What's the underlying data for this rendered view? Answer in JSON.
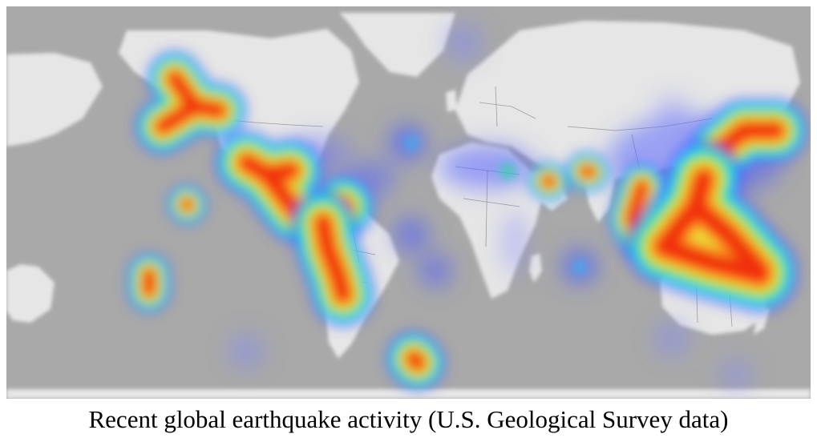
{
  "caption": "Recent global earthquake activity (U.S. Geological Survey data)",
  "map": {
    "projection": "mercator",
    "basemap": "light-gray-world",
    "ocean_color": "#a9a9a9",
    "land_color": "#e6e6e6",
    "border_color": "#8c8c8c"
  },
  "heatmap": {
    "color_ramp": [
      "#4b4bff",
      "#22cfff",
      "#33e84a",
      "#f4e23a",
      "#ff8c1a",
      "#f0280a"
    ],
    "hotspots": [
      {
        "name": "alaska-aleutians",
        "intensity": "very-high"
      },
      {
        "name": "mexico-central-america",
        "intensity": "very-high"
      },
      {
        "name": "andes-peru-chile",
        "intensity": "very-high"
      },
      {
        "name": "hawaii",
        "intensity": "high"
      },
      {
        "name": "tonga-kermadec",
        "intensity": "very-high"
      },
      {
        "name": "south-sandwich-islands",
        "intensity": "high"
      },
      {
        "name": "iran",
        "intensity": "high"
      },
      {
        "name": "himalaya-nepal",
        "intensity": "high"
      },
      {
        "name": "myanmar-andaman",
        "intensity": "high"
      },
      {
        "name": "japan-kurils",
        "intensity": "very-high"
      },
      {
        "name": "indonesia-philippines",
        "intensity": "very-high"
      },
      {
        "name": "mid-atlantic-ridge",
        "intensity": "low"
      },
      {
        "name": "mediterranean",
        "intensity": "medium"
      },
      {
        "name": "indian-ocean-ridge",
        "intensity": "low"
      }
    ]
  }
}
